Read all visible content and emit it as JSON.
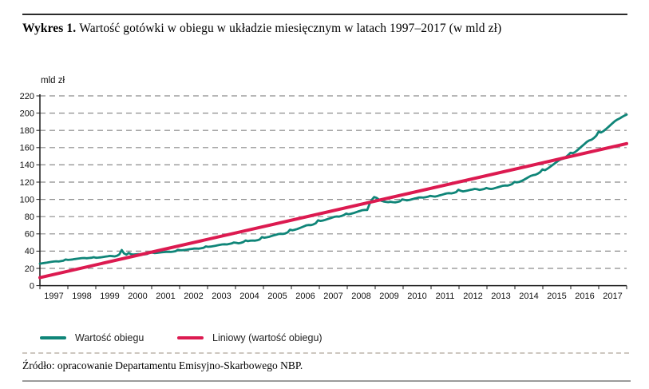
{
  "figure": {
    "label": "Wykres 1.",
    "title": "Wartość gotówki w obiegu w układzie miesięcznym w latach 1997–2017 (w mld zł)"
  },
  "legend": {
    "items": [
      "Wartość obiegu",
      "Liniowy (wartość obiegu)"
    ]
  },
  "footer": {
    "source": "Źródło: opracowanie Departamentu Emisyjno-Skarbowego NBP."
  },
  "chart_data": {
    "type": "line",
    "title": "Wartość gotówki w obiegu w układzie miesięcznym w latach 1997–2017 (w mld zł)",
    "ylabel": "mld zł",
    "xlabel": "",
    "ylim": [
      0,
      220
    ],
    "y_ticks": [
      0,
      20,
      40,
      60,
      80,
      100,
      120,
      140,
      160,
      180,
      200,
      220
    ],
    "categories": [
      "1997",
      "1998",
      "1999",
      "2000",
      "2001",
      "2002",
      "2003",
      "2004",
      "2005",
      "2006",
      "2007",
      "2008",
      "2009",
      "2010",
      "2011",
      "2012",
      "2013",
      "2014",
      "2015",
      "2016",
      "2017"
    ],
    "grid": "dashed-horizontal",
    "legend_position": "bottom",
    "colors": {
      "grid": "#8c8c8c",
      "axis": "#1a1a1a",
      "tick_label": "#111111"
    },
    "series": [
      {
        "name": "Wartość obiegu",
        "color": "#0f8578",
        "frequency": "monthly",
        "x_start_year": 1997,
        "monthly_values": [
          25.5,
          25.9,
          26.3,
          26.7,
          27.2,
          27.6,
          28.0,
          28.2,
          28.0,
          28.4,
          28.9,
          30.3,
          29.8,
          30.1,
          30.4,
          30.8,
          31.2,
          31.6,
          31.9,
          32.0,
          31.8,
          32.0,
          32.3,
          33.0,
          32.3,
          32.5,
          32.8,
          33.2,
          33.6,
          34.0,
          34.4,
          34.2,
          33.9,
          34.6,
          36.3,
          41.3,
          37.3,
          36.0,
          38.0,
          36.5,
          36.0,
          36.3,
          36.6,
          36.4,
          36.1,
          36.3,
          36.8,
          38.6,
          38.2,
          37.8,
          38.0,
          38.3,
          38.6,
          38.9,
          39.2,
          39.3,
          39.1,
          39.4,
          39.9,
          41.5,
          41.0,
          41.1,
          41.4,
          41.8,
          42.2,
          42.6,
          43.0,
          43.1,
          42.9,
          43.3,
          43.9,
          45.5,
          45.0,
          45.3,
          45.7,
          46.2,
          46.8,
          47.3,
          47.8,
          48.0,
          47.8,
          48.3,
          48.9,
          50.0,
          49.6,
          49.1,
          49.6,
          50.6,
          52.4,
          51.6,
          52.1,
          52.3,
          52.1,
          52.6,
          53.5,
          56.3,
          55.6,
          56.0,
          56.6,
          57.4,
          58.2,
          59.0,
          59.8,
          60.1,
          59.9,
          60.6,
          61.8,
          64.8,
          64.2,
          64.8,
          65.6,
          66.6,
          67.7,
          68.8,
          69.9,
          70.3,
          70.2,
          71.0,
          72.3,
          75.7,
          75.0,
          75.5,
          76.2,
          77.1,
          78.0,
          78.9,
          79.8,
          80.2,
          80.0,
          80.8,
          81.8,
          83.5,
          82.8,
          83.3,
          84.0,
          84.9,
          85.8,
          86.7,
          87.5,
          87.8,
          87.7,
          94.5,
          99.5,
          102.7,
          101.8,
          99.8,
          98.4,
          97.6,
          97.1,
          96.8,
          97.2,
          96.8,
          96.5,
          97.0,
          97.8,
          100.0,
          99.4,
          98.8,
          99.3,
          100.0,
          100.7,
          101.4,
          102.1,
          102.3,
          102.0,
          102.5,
          103.1,
          104.1,
          103.6,
          103.2,
          103.8,
          104.6,
          105.4,
          106.2,
          106.9,
          107.2,
          106.9,
          107.5,
          108.3,
          111.1,
          110.0,
          109.3,
          109.7,
          110.3,
          110.9,
          111.5,
          112.1,
          111.8,
          111.0,
          111.4,
          112.0,
          113.2,
          112.4,
          112.0,
          112.5,
          113.3,
          114.1,
          114.9,
          115.7,
          116.1,
          115.9,
          116.7,
          117.8,
          120.2,
          119.7,
          120.2,
          121.3,
          122.7,
          124.2,
          125.7,
          127.2,
          128.1,
          128.5,
          129.8,
          131.7,
          134.7,
          133.8,
          135.3,
          137.2,
          139.2,
          141.2,
          143.2,
          145.2,
          146.5,
          147.3,
          149.1,
          151.4,
          154.0,
          153.5,
          155.0,
          157.1,
          159.5,
          161.9,
          164.3,
          166.7,
          168.3,
          169.2,
          171.1,
          173.7,
          178.5,
          177.5,
          179.0,
          181.1,
          183.5,
          185.9,
          188.3,
          190.7,
          192.5,
          193.8,
          195.5,
          197.0,
          198.2
        ]
      },
      {
        "name": "Liniowy (wartość obiegu)",
        "color": "#dc1a50",
        "trend": {
          "start_value": 9.3,
          "end_value": 164.6
        }
      }
    ]
  }
}
